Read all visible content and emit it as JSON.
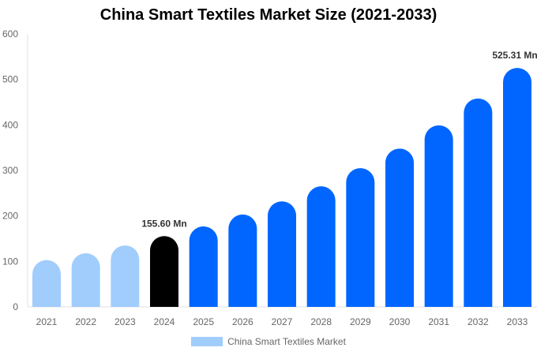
{
  "chart_data": {
    "type": "bar",
    "title": "China Smart Textiles Market Size (2021-2033)",
    "categories": [
      "2021",
      "2022",
      "2023",
      "2024",
      "2025",
      "2026",
      "2027",
      "2028",
      "2029",
      "2030",
      "2031",
      "2032",
      "2033"
    ],
    "series": [
      {
        "name": "China Smart Textiles Market",
        "values": [
          103,
          118,
          135,
          155.6,
          177,
          203,
          232,
          265,
          305,
          348,
          399,
          458,
          525.31
        ]
      }
    ],
    "colors": {
      "historical": "#a0cdfc",
      "base_year": "#000000",
      "forecast": "#0066ff"
    },
    "data_labels": [
      {
        "category": "2024",
        "text": "155.60 Mn"
      },
      {
        "category": "2033",
        "text": "525.31 Mn"
      }
    ],
    "yticks": [
      "0",
      "100",
      "200",
      "300",
      "400",
      "500",
      "600"
    ],
    "ylim": [
      0,
      600
    ],
    "xlabel": "",
    "ylabel": "",
    "grid": false,
    "legend": "bottom"
  }
}
